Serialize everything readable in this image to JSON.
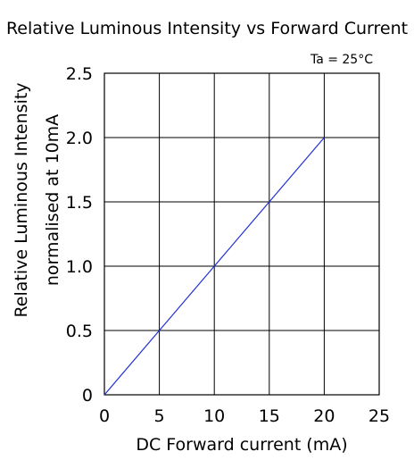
{
  "chart_data": {
    "type": "line",
    "title": "Relative Luminous Intensity vs Forward Current",
    "xlabel": "DC Forward current (mA)",
    "ylabel_line1": "Relative Luminous Intensity",
    "ylabel_line2": "normalised at 10mA",
    "annotation": "Ta = 25°C",
    "xlim": [
      0,
      25
    ],
    "ylim": [
      0,
      2.5
    ],
    "x_ticks": [
      "0",
      "5",
      "10",
      "15",
      "20",
      "25"
    ],
    "y_ticks": [
      "0",
      "0.5",
      "1.0",
      "1.5",
      "2.0",
      "2.5"
    ],
    "grid": true,
    "series": [
      {
        "color": "#1f2fd6",
        "x": [
          0,
          5,
          10,
          15,
          20
        ],
        "y": [
          0,
          0.5,
          1.0,
          1.5,
          2.0
        ]
      }
    ]
  }
}
